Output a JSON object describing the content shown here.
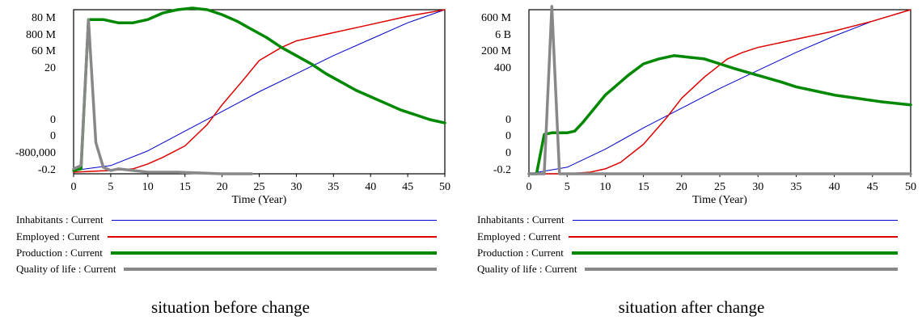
{
  "chart_data": [
    {
      "type": "line",
      "caption": "situation before change",
      "xlabel": "Time (Year)",
      "x_ticks": [
        0,
        5,
        10,
        15,
        20,
        25,
        30,
        35,
        40,
        45,
        50
      ],
      "xlim": [
        0,
        50
      ],
      "y_tick_labels": [
        "80 M",
        "800 M",
        "60 M",
        "20",
        "0",
        "0",
        "-800,000",
        "-0.2"
      ],
      "grid": false,
      "legend_position": "bottom",
      "series": [
        {
          "name": "Inhabitants : Current",
          "color": "#0000cc",
          "width": 1,
          "points": [
            [
              0,
              0.02
            ],
            [
              5,
              0.05
            ],
            [
              10,
              0.14
            ],
            [
              15,
              0.26
            ],
            [
              20,
              0.38
            ],
            [
              25,
              0.5
            ],
            [
              30,
              0.61
            ],
            [
              35,
              0.72
            ],
            [
              40,
              0.82
            ],
            [
              45,
              0.92
            ],
            [
              50,
              1.0
            ]
          ]
        },
        {
          "name": "Employed : Current",
          "color": "#dd0000",
          "width": 1.5,
          "points": [
            [
              0,
              0.01
            ],
            [
              5,
              0.02
            ],
            [
              8,
              0.03
            ],
            [
              10,
              0.06
            ],
            [
              12,
              0.1
            ],
            [
              15,
              0.17
            ],
            [
              18,
              0.3
            ],
            [
              20,
              0.42
            ],
            [
              23,
              0.58
            ],
            [
              25,
              0.69
            ],
            [
              28,
              0.77
            ],
            [
              30,
              0.81
            ],
            [
              33,
              0.84
            ],
            [
              35,
              0.86
            ],
            [
              40,
              0.91
            ],
            [
              45,
              0.96
            ],
            [
              50,
              1.0
            ]
          ]
        },
        {
          "name": "Production : Current",
          "color": "#008800",
          "width": 3.5,
          "points": [
            [
              0,
              0.02
            ],
            [
              1,
              0.03
            ],
            [
              2,
              0.94
            ],
            [
              4,
              0.94
            ],
            [
              6,
              0.92
            ],
            [
              8,
              0.92
            ],
            [
              10,
              0.94
            ],
            [
              12,
              0.98
            ],
            [
              14,
              1.0
            ],
            [
              16,
              1.01
            ],
            [
              18,
              1.0
            ],
            [
              20,
              0.97
            ],
            [
              22,
              0.93
            ],
            [
              24,
              0.88
            ],
            [
              26,
              0.83
            ],
            [
              28,
              0.77
            ],
            [
              30,
              0.72
            ],
            [
              32,
              0.67
            ],
            [
              34,
              0.61
            ],
            [
              36,
              0.56
            ],
            [
              38,
              0.51
            ],
            [
              40,
              0.47
            ],
            [
              42,
              0.43
            ],
            [
              44,
              0.39
            ],
            [
              46,
              0.36
            ],
            [
              48,
              0.33
            ],
            [
              50,
              0.31
            ]
          ]
        },
        {
          "name": "Quality of life : Current",
          "color": "#888888",
          "width": 3.5,
          "points": [
            [
              0,
              0.03
            ],
            [
              1,
              0.05
            ],
            [
              2,
              0.94
            ],
            [
              3,
              0.19
            ],
            [
              4,
              0.04
            ],
            [
              5,
              0.02
            ],
            [
              6,
              0.03
            ],
            [
              8,
              0.02
            ],
            [
              10,
              0.01
            ],
            [
              14,
              0.01
            ],
            [
              20,
              0.0
            ],
            [
              24,
              0.0
            ]
          ]
        }
      ]
    },
    {
      "type": "line",
      "caption": "situation after change",
      "xlabel": "Time (Year)",
      "x_ticks": [
        0,
        5,
        10,
        15,
        20,
        25,
        30,
        35,
        40,
        45,
        50
      ],
      "xlim": [
        0,
        50
      ],
      "y_tick_labels": [
        "600 M",
        "6 B",
        "200 M",
        "400",
        "0",
        "0",
        "0",
        "-0.2"
      ],
      "grid": false,
      "legend_position": "bottom",
      "series": [
        {
          "name": "Inhabitants : Current",
          "color": "#0000cc",
          "width": 1,
          "points": [
            [
              0,
              0.0
            ],
            [
              5,
              0.04
            ],
            [
              10,
              0.15
            ],
            [
              15,
              0.28
            ],
            [
              20,
              0.4
            ],
            [
              25,
              0.52
            ],
            [
              30,
              0.63
            ],
            [
              35,
              0.74
            ],
            [
              40,
              0.84
            ],
            [
              45,
              0.93
            ],
            [
              50,
              1.0
            ]
          ]
        },
        {
          "name": "Employed : Current",
          "color": "#dd0000",
          "width": 1.5,
          "points": [
            [
              0,
              0.0
            ],
            [
              5,
              0.0
            ],
            [
              8,
              0.01
            ],
            [
              10,
              0.03
            ],
            [
              12,
              0.07
            ],
            [
              15,
              0.18
            ],
            [
              18,
              0.34
            ],
            [
              20,
              0.46
            ],
            [
              23,
              0.59
            ],
            [
              26,
              0.7
            ],
            [
              28,
              0.74
            ],
            [
              30,
              0.77
            ],
            [
              33,
              0.8
            ],
            [
              35,
              0.82
            ],
            [
              40,
              0.87
            ],
            [
              45,
              0.93
            ],
            [
              50,
              1.0
            ]
          ]
        },
        {
          "name": "Production : Current",
          "color": "#008800",
          "width": 3.5,
          "points": [
            [
              0,
              0.0
            ],
            [
              1,
              0.0
            ],
            [
              2,
              0.24
            ],
            [
              3,
              0.25
            ],
            [
              5,
              0.25
            ],
            [
              6,
              0.26
            ],
            [
              7,
              0.31
            ],
            [
              10,
              0.48
            ],
            [
              13,
              0.6
            ],
            [
              15,
              0.67
            ],
            [
              17,
              0.7
            ],
            [
              19,
              0.72
            ],
            [
              21,
              0.71
            ],
            [
              23,
              0.7
            ],
            [
              25,
              0.67
            ],
            [
              27,
              0.64
            ],
            [
              30,
              0.6
            ],
            [
              33,
              0.56
            ],
            [
              35,
              0.53
            ],
            [
              38,
              0.5
            ],
            [
              40,
              0.48
            ],
            [
              43,
              0.46
            ],
            [
              46,
              0.44
            ],
            [
              48,
              0.43
            ],
            [
              50,
              0.42
            ]
          ]
        },
        {
          "name": "Quality of life : Current",
          "color": "#888888",
          "width": 3.5,
          "points": [
            [
              0,
              0.0
            ],
            [
              2,
              0.0
            ],
            [
              3,
              1.02
            ],
            [
              4,
              0.0
            ],
            [
              50,
              0.0
            ]
          ]
        }
      ]
    }
  ]
}
